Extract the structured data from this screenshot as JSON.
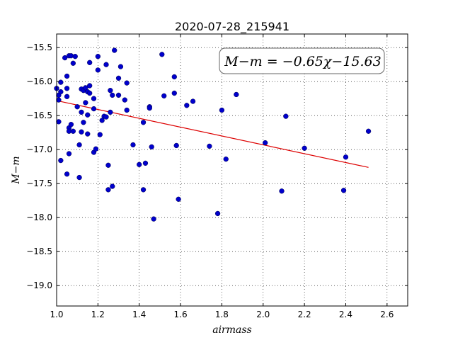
{
  "chart_data": {
    "type": "scatter",
    "title": "2020-07-28_215941",
    "xlabel": "airmass",
    "ylabel": "M−m",
    "xlim": [
      1.0,
      2.7
    ],
    "ylim": [
      -15.3,
      -19.3
    ],
    "y_inverted": true,
    "grid": true,
    "grid_style": "dotted",
    "x_ticks": [
      1.0,
      1.2,
      1.4,
      1.6,
      1.8,
      2.0,
      2.2,
      2.4,
      2.6
    ],
    "x_tick_labels": [
      "1.0",
      "1.2",
      "1.4",
      "1.6",
      "1.8",
      "2.0",
      "2.2",
      "2.4",
      "2.6"
    ],
    "y_ticks": [
      -15.5,
      -16.0,
      -16.5,
      -17.0,
      -17.5,
      -18.0,
      -18.5,
      -19.0
    ],
    "y_tick_labels": [
      "−15.5",
      "−16.0",
      "−16.5",
      "−17.0",
      "−17.5",
      "−18.0",
      "−18.5",
      "−19.0"
    ],
    "annotation": "M−m = −0.65χ−15.63",
    "fit": {
      "slope": -0.65,
      "intercept": -15.63,
      "x_range": [
        1.0,
        2.51
      ],
      "color": "#dd0000"
    },
    "marker_color": "#0000cc",
    "points": [
      [
        1.0,
        -16.1
      ],
      [
        1.01,
        -16.27
      ],
      [
        1.01,
        -16.2
      ],
      [
        1.01,
        -16.59
      ],
      [
        1.02,
        -16.01
      ],
      [
        1.02,
        -16.15
      ],
      [
        1.02,
        -17.16
      ],
      [
        1.04,
        -15.65
      ],
      [
        1.05,
        -16.1
      ],
      [
        1.05,
        -15.92
      ],
      [
        1.05,
        -16.22
      ],
      [
        1.05,
        -17.36
      ],
      [
        1.06,
        -15.62
      ],
      [
        1.06,
        -16.68
      ],
      [
        1.06,
        -16.73
      ],
      [
        1.06,
        -17.06
      ],
      [
        1.07,
        -15.62
      ],
      [
        1.07,
        -16.63
      ],
      [
        1.08,
        -15.73
      ],
      [
        1.08,
        -16.73
      ],
      [
        1.09,
        -15.63
      ],
      [
        1.1,
        -16.37
      ],
      [
        1.11,
        -16.93
      ],
      [
        1.11,
        -17.41
      ],
      [
        1.12,
        -16.11
      ],
      [
        1.12,
        -16.45
      ],
      [
        1.12,
        -16.74
      ],
      [
        1.13,
        -16.6
      ],
      [
        1.13,
        -16.13
      ],
      [
        1.14,
        -16.09
      ],
      [
        1.14,
        -16.31
      ],
      [
        1.15,
        -16.77
      ],
      [
        1.15,
        -16.49
      ],
      [
        1.15,
        -16.15
      ],
      [
        1.16,
        -16.06
      ],
      [
        1.16,
        -16.17
      ],
      [
        1.16,
        -15.72
      ],
      [
        1.18,
        -16.4
      ],
      [
        1.18,
        -16.25
      ],
      [
        1.18,
        -17.04
      ],
      [
        1.19,
        -16.99
      ],
      [
        1.2,
        -15.63
      ],
      [
        1.2,
        -15.83
      ],
      [
        1.21,
        -16.78
      ],
      [
        1.22,
        -16.57
      ],
      [
        1.23,
        -16.51
      ],
      [
        1.24,
        -16.52
      ],
      [
        1.24,
        -15.75
      ],
      [
        1.25,
        -17.23
      ],
      [
        1.25,
        -17.59
      ],
      [
        1.26,
        -16.13
      ],
      [
        1.26,
        -16.45
      ],
      [
        1.27,
        -16.2
      ],
      [
        1.27,
        -17.54
      ],
      [
        1.28,
        -15.54
      ],
      [
        1.3,
        -16.2
      ],
      [
        1.3,
        -15.95
      ],
      [
        1.31,
        -15.78
      ],
      [
        1.33,
        -16.27
      ],
      [
        1.34,
        -16.02
      ],
      [
        1.34,
        -16.42
      ],
      [
        1.37,
        -16.93
      ],
      [
        1.4,
        -17.22
      ],
      [
        1.42,
        -16.6
      ],
      [
        1.42,
        -17.59
      ],
      [
        1.43,
        -17.2
      ],
      [
        1.45,
        -16.37
      ],
      [
        1.45,
        -16.39
      ],
      [
        1.46,
        -16.96
      ],
      [
        1.47,
        -18.02
      ],
      [
        1.51,
        -15.6
      ],
      [
        1.52,
        -16.21
      ],
      [
        1.57,
        -15.93
      ],
      [
        1.57,
        -16.17
      ],
      [
        1.58,
        -16.94
      ],
      [
        1.59,
        -17.73
      ],
      [
        1.63,
        -16.35
      ],
      [
        1.66,
        -16.29
      ],
      [
        1.74,
        -16.95
      ],
      [
        1.78,
        -17.94
      ],
      [
        1.8,
        -16.42
      ],
      [
        1.82,
        -17.14
      ],
      [
        1.87,
        -16.19
      ],
      [
        2.01,
        -16.9
      ],
      [
        2.09,
        -17.61
      ],
      [
        2.11,
        -16.51
      ],
      [
        2.2,
        -16.98
      ],
      [
        2.39,
        -17.6
      ],
      [
        2.4,
        -17.11
      ],
      [
        2.51,
        -16.73
      ]
    ]
  }
}
